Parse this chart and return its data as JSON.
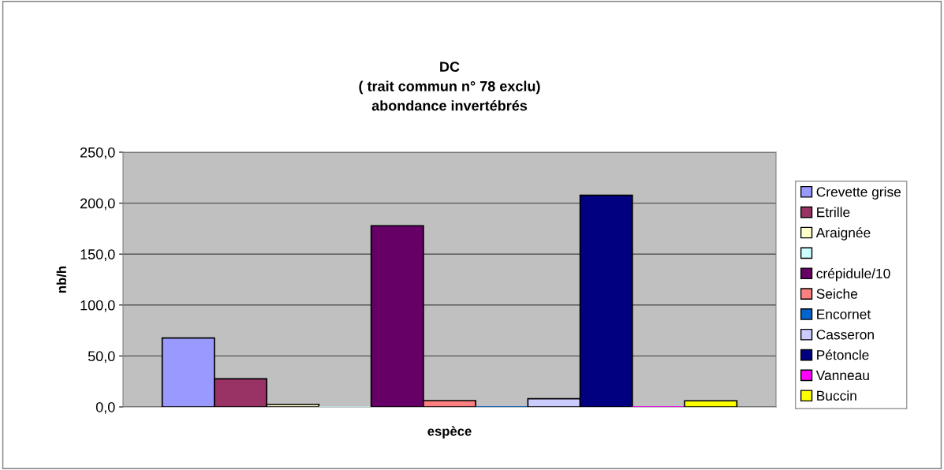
{
  "chart_data": {
    "type": "bar",
    "title": "DC\n( trait commun n° 78 exclu)\nabondance invertébrés",
    "xlabel": "espèce",
    "ylabel": "nb/h",
    "categories": [
      null
    ],
    "series": [
      {
        "name": "Crevette grise",
        "color": "#9999ff",
        "values": [
          67.6
        ]
      },
      {
        "name": "Etrille",
        "color": "#993366",
        "values": [
          27.6
        ]
      },
      {
        "name": "Araignée",
        "color": "#ffffcc",
        "values": [
          2.5
        ]
      },
      {
        "color": "#ccffff",
        "values": [
          0
        ]
      },
      {
        "name": "crépidule/10",
        "color": "#660066",
        "values": [
          177.8
        ]
      },
      {
        "name": "Seiche",
        "color": "#ff8080",
        "values": [
          6.2
        ]
      },
      {
        "name": "Encornet",
        "color": "#0066cc",
        "values": [
          0
        ]
      },
      {
        "name": "Casseron",
        "color": "#ccccff",
        "values": [
          8
        ]
      },
      {
        "name": "Pétoncle",
        "color": "#000080",
        "values": [
          207.7
        ]
      },
      {
        "name": "Vanneau",
        "color": "#ff00ff",
        "values": [
          0
        ]
      },
      {
        "name": "Buccin",
        "color": "#ffff00",
        "values": [
          6
        ]
      }
    ],
    "ylim": [
      0,
      250
    ],
    "yticks": [
      {
        "value": 0,
        "label": "0,0"
      },
      {
        "value": 50,
        "label": "50,0"
      },
      {
        "value": 100,
        "label": "100,0"
      },
      {
        "value": 150,
        "label": "150,0"
      },
      {
        "value": 200,
        "label": "200,0"
      },
      {
        "value": 250,
        "label": "250,0"
      }
    ],
    "grid": "y",
    "legend": "right"
  }
}
